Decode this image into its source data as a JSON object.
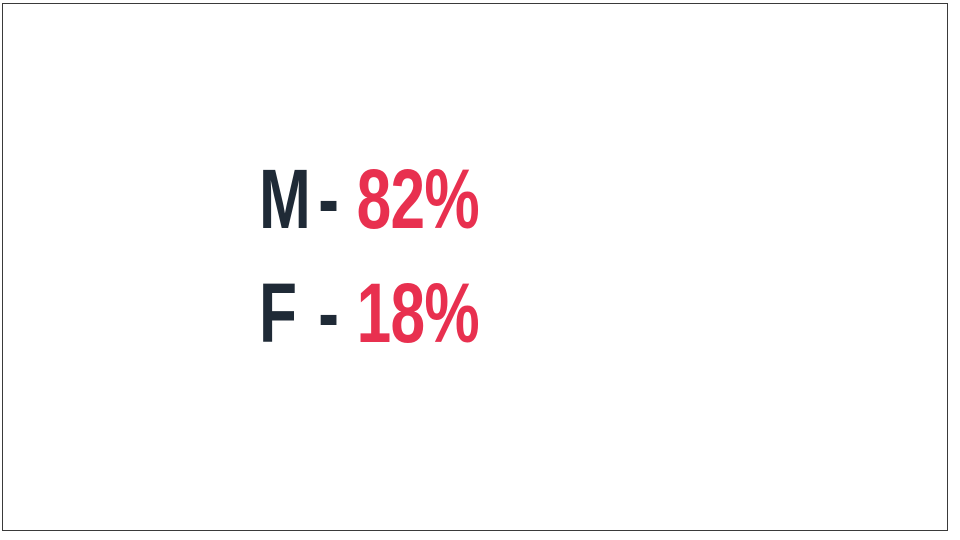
{
  "stats": {
    "rows": [
      {
        "label": "M",
        "separator": "-",
        "value": "82%"
      },
      {
        "label": "F",
        "separator": "-",
        "value": "18%"
      }
    ]
  },
  "colors": {
    "label": "#1f2a36",
    "value": "#e8304f",
    "background": "#ffffff",
    "border": "#3a3a3a"
  }
}
